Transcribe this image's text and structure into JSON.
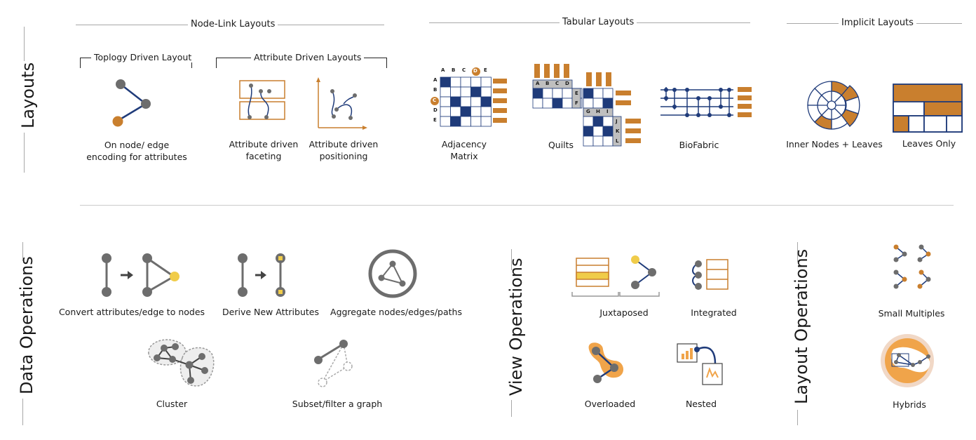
{
  "sections": {
    "layouts": "Layouts",
    "data_operations": "Data Operations",
    "view_operations": "View Operations",
    "layout_operations": "Layout Operations"
  },
  "headers": {
    "node_link": "Node-Link Layouts",
    "tabular": "Tabular Layouts",
    "implicit": "Implicit Layouts",
    "topology": "Toplogy Driven Layout",
    "attribute": "Attribute Driven Layouts"
  },
  "labels": {
    "on_node": "On node/ edge",
    "on_node_2": "encoding for attributes",
    "faceting": "Attribute driven",
    "faceting_2": "faceting",
    "positioning": "Attribute driven",
    "positioning_2": "positioning",
    "adjacency": "Adjacency",
    "adjacency_2": "Matrix",
    "quilts": "Quilts",
    "biofabric": "BioFabric",
    "inner_nodes": "Inner Nodes + Leaves",
    "leaves_only": "Leaves Only",
    "convert": "Convert attributes/edge to nodes",
    "derive": "Derive New Attributes",
    "aggregate": "Aggregate nodes/edges/paths",
    "cluster": "Cluster",
    "subset": "Subset/filter  a graph",
    "juxtaposed": "Juxtaposed",
    "integrated": "Integrated",
    "overloaded": "Overloaded",
    "nested": "Nested",
    "small_multiples": "Small Multiples",
    "hybrids": "Hybrids"
  },
  "adjacency_matrix": {
    "cols": [
      "A",
      "B",
      "C",
      "D",
      "E"
    ],
    "rows": [
      "A",
      "B",
      "C",
      "D",
      "E"
    ]
  },
  "quilts": {
    "blocks": [
      [
        "A",
        "B",
        "C",
        "D"
      ],
      [
        "E",
        "F"
      ],
      [
        "G",
        "H",
        "I"
      ],
      [
        "J",
        "K",
        "L"
      ]
    ]
  },
  "colors": {
    "orange": "#c97f2e",
    "navy": "#1f3b7a",
    "gray_node": "#6d6d6d",
    "yellow": "#f0cc4a",
    "rule": "#a8a8a8"
  }
}
